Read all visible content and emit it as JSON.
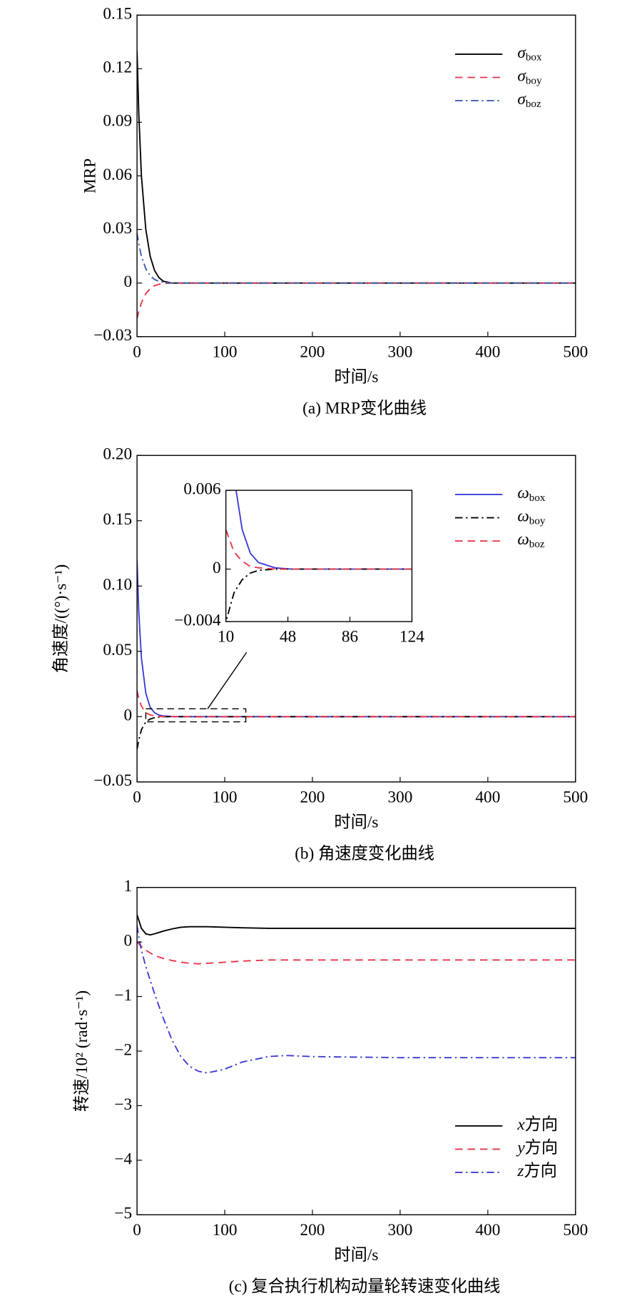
{
  "chart_data": [
    {
      "type": "line",
      "title": "(a) MRP变化曲线",
      "xlabel": "时间/s",
      "ylabel": "MRP",
      "x": [
        0,
        2,
        5,
        10,
        15,
        20,
        25,
        30,
        40,
        50,
        100,
        200,
        300,
        400,
        500
      ],
      "series": [
        {
          "name": "σbox",
          "color": "#000000",
          "dash": "solid",
          "values": [
            0.13,
            0.095,
            0.06,
            0.03,
            0.015,
            0.007,
            0.003,
            0.001,
            0,
            0,
            0,
            0,
            0,
            0,
            0
          ]
        },
        {
          "name": "σboy",
          "color": "#e8344a",
          "dash": "dashed",
          "values": [
            -0.02,
            -0.016,
            -0.011,
            -0.006,
            -0.003,
            -0.0015,
            -0.0007,
            -0.0003,
            0,
            0,
            0,
            0,
            0,
            0,
            0
          ]
        },
        {
          "name": "σboz",
          "color": "#3a5bb0",
          "dash": "dashdot",
          "values": [
            0.028,
            0.022,
            0.015,
            0.008,
            0.004,
            0.002,
            0.001,
            0.0004,
            0,
            0,
            0,
            0,
            0,
            0,
            0
          ]
        }
      ],
      "xlim": [
        0,
        500
      ],
      "xticks": [
        0,
        100,
        200,
        300,
        400,
        500
      ],
      "ylim": [
        -0.03,
        0.15
      ],
      "yticks": [
        {
          "value": -0.03,
          "label": "−0.03"
        },
        0,
        0.03,
        0.06,
        0.09,
        0.12,
        0.15
      ],
      "legend": "upper right"
    },
    {
      "type": "line",
      "title": "(b) 角速度变化曲线",
      "xlabel": "时间/s",
      "ylabel": "角速度/((°)·s⁻¹)",
      "x": [
        0,
        2,
        5,
        10,
        15,
        20,
        25,
        30,
        40,
        50,
        100,
        200,
        300,
        400,
        500
      ],
      "series": [
        {
          "name": "ωbox",
          "color": "#3b3bd6",
          "dash": "solid",
          "values": [
            0.12,
            0.08,
            0.045,
            0.018,
            0.007,
            0.003,
            0.0012,
            0.0005,
            0.0001,
            0,
            0,
            0,
            0,
            0,
            0
          ]
        },
        {
          "name": "ωboy",
          "color": "#000000",
          "dash": "dashdot",
          "values": [
            -0.025,
            -0.018,
            -0.01,
            -0.004,
            -0.0018,
            -0.0008,
            -0.0003,
            -0.0001,
            0,
            0,
            0,
            0,
            0,
            0,
            0
          ]
        },
        {
          "name": "ωboz",
          "color": "#e8344a",
          "dash": "dashed",
          "values": [
            0.02,
            0.014,
            0.008,
            0.003,
            0.0013,
            0.0006,
            0.0002,
            0.0001,
            0,
            0,
            0,
            0,
            0,
            0,
            0
          ]
        }
      ],
      "xlim": [
        0,
        500
      ],
      "xticks": [
        0,
        100,
        200,
        300,
        400,
        500
      ],
      "ylim": [
        -0.05,
        0.2
      ],
      "yticks": [
        {
          "value": -0.05,
          "label": "−0.05"
        },
        0,
        0.05,
        {
          "value": 0.1,
          "label": "0.10"
        },
        0.15,
        {
          "value": 0.2,
          "label": "0.20"
        }
      ],
      "legend": "upper right",
      "inset": {
        "xlim": [
          10,
          124
        ],
        "xticks": [
          10,
          48,
          86,
          124
        ],
        "ylim": [
          -0.004,
          0.006
        ],
        "yticks": [
          {
            "value": -0.004,
            "label": "−0.004"
          },
          0,
          0.006
        ]
      }
    },
    {
      "type": "line",
      "title": "(c) 复合执行机构动量轮转速变化曲线",
      "xlabel": "时间/s",
      "ylabel": "转速/10² (rad·s⁻¹)",
      "x": [
        0,
        3,
        5,
        10,
        15,
        20,
        30,
        40,
        50,
        60,
        70,
        80,
        100,
        120,
        150,
        170,
        200,
        300,
        400,
        500
      ],
      "series": [
        {
          "name": "x方向",
          "color": "#000000",
          "dash": "solid",
          "values": [
            0.5,
            0.35,
            0.25,
            0.15,
            0.13,
            0.15,
            0.2,
            0.24,
            0.27,
            0.28,
            0.28,
            0.28,
            0.27,
            0.26,
            0.25,
            0.25,
            0.25,
            0.25,
            0.25,
            0.25
          ]
        },
        {
          "name": "y方向",
          "color": "#e8344a",
          "dash": "dashed",
          "values": [
            0,
            -0.05,
            -0.08,
            -0.15,
            -0.2,
            -0.25,
            -0.3,
            -0.34,
            -0.37,
            -0.39,
            -0.4,
            -0.39,
            -0.37,
            -0.35,
            -0.33,
            -0.33,
            -0.33,
            -0.33,
            -0.33,
            -0.33
          ]
        },
        {
          "name": "z方向",
          "color": "#3b3bd6",
          "dash": "dashdot",
          "values": [
            0.3,
            0,
            -0.15,
            -0.45,
            -0.7,
            -0.95,
            -1.4,
            -1.8,
            -2.1,
            -2.28,
            -2.37,
            -2.4,
            -2.33,
            -2.2,
            -2.1,
            -2.08,
            -2.1,
            -2.12,
            -2.12,
            -2.12
          ]
        }
      ],
      "xlim": [
        0,
        500
      ],
      "xticks": [
        0,
        100,
        200,
        300,
        400,
        500
      ],
      "ylim": [
        -5,
        1
      ],
      "yticks": [
        {
          "value": -5,
          "label": "−5"
        },
        {
          "value": -4,
          "label": "−4"
        },
        {
          "value": -3,
          "label": "−3"
        },
        {
          "value": -2,
          "label": "−2"
        },
        {
          "value": -1,
          "label": "−1"
        },
        0,
        1
      ],
      "legend": "lower right"
    }
  ]
}
